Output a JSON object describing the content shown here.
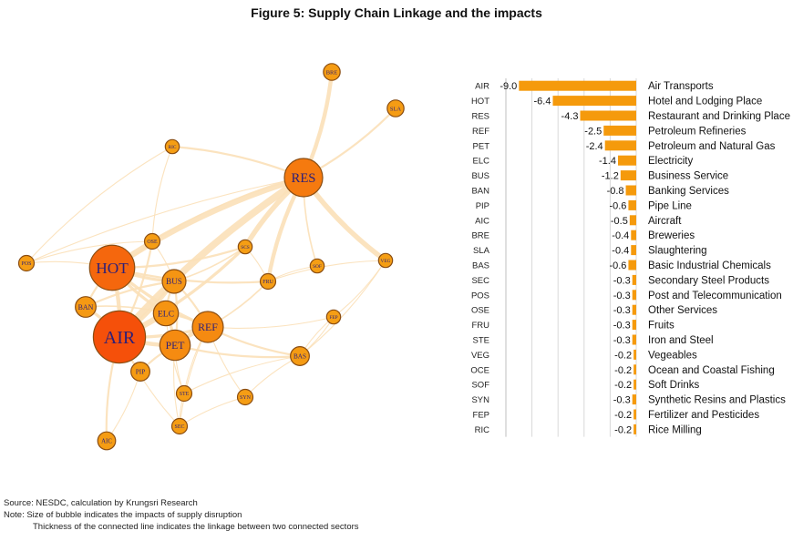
{
  "title": "Figure 5: Supply Chain Linkage and the impacts",
  "notes": {
    "source": "Source: NESDC, calculation by Krungsri Research",
    "note1": "Note: Size of bubble indicates the impacts of supply disruption",
    "note2": "Thickness of the connected line indicates the linkage between two connected sectors"
  },
  "colors": {
    "bar": "#f59a0c",
    "edge": "#fbe0b8",
    "node_stroke": "#8a4d12",
    "node_text": "#2b1f7a"
  },
  "chart_data": [
    {
      "type": "network",
      "nodes": [
        "RES",
        "HOT",
        "AIR",
        "BUS",
        "ELC",
        "REF",
        "PET",
        "BAN",
        "PIP",
        "OSE",
        "SCS",
        "FRU",
        "SOF",
        "VEG",
        "POS",
        "BRE",
        "SLA",
        "RIC",
        "BAS",
        "STE",
        "SYN",
        "SEC",
        "AIC",
        "FEP"
      ],
      "edges": [
        {
          "from": "RES",
          "to": "HOT",
          "weight": 6
        },
        {
          "from": "RES",
          "to": "AIR",
          "weight": 7
        },
        {
          "from": "RES",
          "to": "BRE",
          "weight": 4
        },
        {
          "from": "RES",
          "to": "VEG",
          "weight": 5
        },
        {
          "from": "RES",
          "to": "SLA",
          "weight": 2
        },
        {
          "from": "RES",
          "to": "FRU",
          "weight": 4
        },
        {
          "from": "RES",
          "to": "SCS",
          "weight": 5
        },
        {
          "from": "RES",
          "to": "RIC",
          "weight": 2
        },
        {
          "from": "RES",
          "to": "SOF",
          "weight": 1.5
        },
        {
          "from": "RES",
          "to": "POS",
          "weight": 1
        },
        {
          "from": "RES",
          "to": "OSE",
          "weight": 1
        },
        {
          "from": "AIR",
          "to": "HOT",
          "weight": 4
        },
        {
          "from": "AIR",
          "to": "BUS",
          "weight": 4
        },
        {
          "from": "AIR",
          "to": "PET",
          "weight": 4
        },
        {
          "from": "AIR",
          "to": "ELC",
          "weight": 3
        },
        {
          "from": "AIR",
          "to": "REF",
          "weight": 3
        },
        {
          "from": "AIR",
          "to": "BAN",
          "weight": 3
        },
        {
          "from": "AIR",
          "to": "OSE",
          "weight": 2
        },
        {
          "from": "AIR",
          "to": "PIP",
          "weight": 2
        },
        {
          "from": "AIR",
          "to": "AIC",
          "weight": 2
        },
        {
          "from": "AIR",
          "to": "SEC",
          "weight": 1
        },
        {
          "from": "AIR",
          "to": "SCS",
          "weight": 3
        },
        {
          "from": "HOT",
          "to": "BUS",
          "weight": 3
        },
        {
          "from": "HOT",
          "to": "ELC",
          "weight": 3
        },
        {
          "from": "HOT",
          "to": "REF",
          "weight": 3
        },
        {
          "from": "HOT",
          "to": "BAN",
          "weight": 2
        },
        {
          "from": "HOT",
          "to": "POS",
          "weight": 1
        },
        {
          "from": "HOT",
          "to": "OSE",
          "weight": 2
        },
        {
          "from": "HOT",
          "to": "SCS",
          "weight": 2
        },
        {
          "from": "HOT",
          "to": "FRU",
          "weight": 2
        },
        {
          "from": "REF",
          "to": "PET",
          "weight": 4
        },
        {
          "from": "REF",
          "to": "ELC",
          "weight": 2
        },
        {
          "from": "REF",
          "to": "BAS",
          "weight": 2
        },
        {
          "from": "REF",
          "to": "BUS",
          "weight": 2
        },
        {
          "from": "REF",
          "to": "FRU",
          "weight": 1.5
        },
        {
          "from": "REF",
          "to": "STE",
          "weight": 1
        },
        {
          "from": "REF",
          "to": "SYN",
          "weight": 1
        },
        {
          "from": "REF",
          "to": "SEC",
          "weight": 1
        },
        {
          "from": "REF",
          "to": "FEP",
          "weight": 1
        },
        {
          "from": "PET",
          "to": "ELC",
          "weight": 3
        },
        {
          "from": "PET",
          "to": "PIP",
          "weight": 2
        },
        {
          "from": "PET",
          "to": "BAS",
          "weight": 2
        },
        {
          "from": "PET",
          "to": "STE",
          "weight": 1
        },
        {
          "from": "PET",
          "to": "SEC",
          "weight": 1
        },
        {
          "from": "PET",
          "to": "BUS",
          "weight": 2
        },
        {
          "from": "BUS",
          "to": "BAN",
          "weight": 2
        },
        {
          "from": "BUS",
          "to": "ELC",
          "weight": 2
        },
        {
          "from": "BUS",
          "to": "OSE",
          "weight": 1
        },
        {
          "from": "BUS",
          "to": "SCS",
          "weight": 1.5
        },
        {
          "from": "BAS",
          "to": "SYN",
          "weight": 1
        },
        {
          "from": "BAS",
          "to": "STE",
          "weight": 1
        },
        {
          "from": "BAS",
          "to": "VEG",
          "weight": 1
        },
        {
          "from": "BAS",
          "to": "FEP",
          "weight": 1
        },
        {
          "from": "STE",
          "to": "SEC",
          "weight": 1
        },
        {
          "from": "SYN",
          "to": "SEC",
          "weight": 1
        },
        {
          "from": "FRU",
          "to": "SCS",
          "weight": 1
        },
        {
          "from": "SOF",
          "to": "FRU",
          "weight": 1
        },
        {
          "from": "VEG",
          "to": "FRU",
          "weight": 1
        },
        {
          "from": "RIC",
          "to": "OSE",
          "weight": 1
        },
        {
          "from": "RIC",
          "to": "POS",
          "weight": 1
        },
        {
          "from": "ELC",
          "to": "BAN",
          "weight": 1.5
        },
        {
          "from": "ELC",
          "to": "STE",
          "weight": 1
        },
        {
          "from": "AIC",
          "to": "PIP",
          "weight": 1
        },
        {
          "from": "OSE",
          "to": "POS",
          "weight": 1
        },
        {
          "from": "FEP",
          "to": "VEG",
          "weight": 1
        },
        {
          "from": "FEP",
          "to": "BAS",
          "weight": 1
        }
      ]
    },
    {
      "type": "bar",
      "orientation": "horizontal",
      "categories": [
        "AIR",
        "HOT",
        "RES",
        "REF",
        "PET",
        "ELC",
        "BUS",
        "BAN",
        "PIP",
        "AIC",
        "BRE",
        "SLA",
        "BAS",
        "SEC",
        "POS",
        "OSE",
        "FRU",
        "STE",
        "VEG",
        "OCE",
        "SOF",
        "SYN",
        "FEP",
        "RIC"
      ],
      "labels": [
        "Air Transports",
        "Hotel and Lodging Place",
        "Restaurant and Drinking Place",
        "Petroleum Refineries",
        "Petroleum and Natural Gas",
        "Electricity",
        "Business Service",
        "Banking Services",
        "Pipe Line",
        "Aircraft",
        "Breweries",
        "Slaughtering",
        "Basic Industrial Chemicals",
        "Secondary Steel Products",
        "Post and Telecommunication",
        "Other Services",
        "Fruits",
        "Iron and Steel",
        "Vegeables",
        "Ocean and Coastal Fishing",
        "Soft Drinks",
        "Synthetic Resins and Plastics",
        "Fertilizer and Pesticides",
        "Rice Milling"
      ],
      "values": [
        -9.0,
        -6.4,
        -4.3,
        -2.5,
        -2.4,
        -1.4,
        -1.2,
        -0.8,
        -0.6,
        -0.5,
        -0.4,
        -0.4,
        -0.6,
        -0.3,
        -0.3,
        -0.3,
        -0.3,
        -0.3,
        -0.2,
        -0.2,
        -0.2,
        -0.3,
        -0.2,
        -0.2
      ],
      "value_labels": [
        "-9.0",
        "-6.4",
        "-4.3",
        "-2.5",
        "-2.4",
        "-1.4",
        "-1.2",
        "-0.8",
        "-0.6",
        "-0.5",
        "-0.4",
        "-0.4",
        "-0.6",
        "-0.3",
        "-0.3",
        "-0.3",
        "-0.3",
        "-0.3",
        "-0.2",
        "-0.2",
        "-0.2",
        "-0.3",
        "-0.2",
        "-0.2"
      ],
      "xlim": [
        -10,
        0
      ],
      "grid": true
    }
  ]
}
